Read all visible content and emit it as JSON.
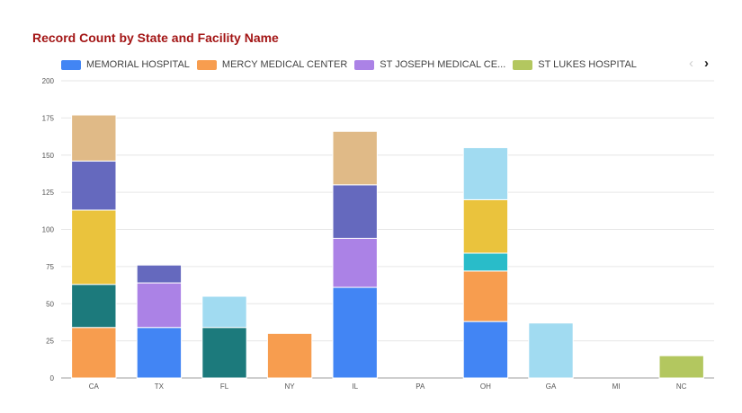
{
  "chart_data": {
    "type": "bar",
    "stacked": true,
    "title": "Record Count by State and Facility Name",
    "categories": [
      "CA",
      "TX",
      "FL",
      "NY",
      "IL",
      "PA",
      "OH",
      "GA",
      "MI",
      "NC"
    ],
    "ylim": [
      0,
      200
    ],
    "yticks": [
      0,
      25,
      50,
      75,
      100,
      125,
      150,
      175,
      200
    ],
    "grid": true,
    "legend_position": "top",
    "series": [
      {
        "name": "MEMORIAL HOSPITAL",
        "color": "#4285f4",
        "values": [
          0,
          34,
          0,
          0,
          61,
          0,
          38,
          0,
          0,
          0
        ]
      },
      {
        "name": "MERCY MEDICAL CENTER",
        "color": "#f79d4f",
        "values": [
          34,
          0,
          0,
          30,
          0,
          0,
          34,
          0,
          0,
          0
        ]
      },
      {
        "name": "ST JOSEPH MEDICAL CE...",
        "color": "#ab82e6",
        "values": [
          0,
          30,
          0,
          0,
          33,
          0,
          0,
          0,
          0,
          0
        ]
      },
      {
        "name": "ST LUKES HOSPITAL",
        "color": "#b3c75f",
        "values": [
          0,
          0,
          0,
          0,
          0,
          0,
          0,
          0,
          0,
          15
        ]
      },
      {
        "name": "",
        "color": "#1c7a7c",
        "values": [
          29,
          0,
          34,
          0,
          0,
          0,
          0,
          0,
          0,
          0
        ]
      },
      {
        "name": "",
        "color": "#29bcc9",
        "values": [
          0,
          0,
          0,
          0,
          0,
          0,
          12,
          0,
          0,
          0
        ]
      },
      {
        "name": "",
        "color": "#eac33d",
        "values": [
          50,
          0,
          0,
          0,
          0,
          0,
          36,
          0,
          0,
          0
        ]
      },
      {
        "name": "",
        "color": "#6569be",
        "values": [
          33,
          12,
          0,
          0,
          36,
          0,
          0,
          0,
          0,
          0
        ]
      },
      {
        "name": "",
        "color": "#a1dbf1",
        "values": [
          0,
          0,
          21,
          0,
          0,
          0,
          35,
          37,
          0,
          0
        ]
      },
      {
        "name": "",
        "color": "#e0ba87",
        "values": [
          31,
          0,
          0,
          0,
          36,
          0,
          0,
          0,
          0,
          0
        ]
      }
    ]
  },
  "legend": {
    "items": [
      {
        "label": "MEMORIAL HOSPITAL",
        "color": "#4285f4"
      },
      {
        "label": "MERCY MEDICAL CENTER",
        "color": "#f79d4f"
      },
      {
        "label": "ST JOSEPH MEDICAL CE...",
        "color": "#ab82e6"
      },
      {
        "label": "ST LUKES HOSPITAL",
        "color": "#b3c75f"
      }
    ],
    "prev_icon": "‹",
    "next_icon": "›"
  }
}
